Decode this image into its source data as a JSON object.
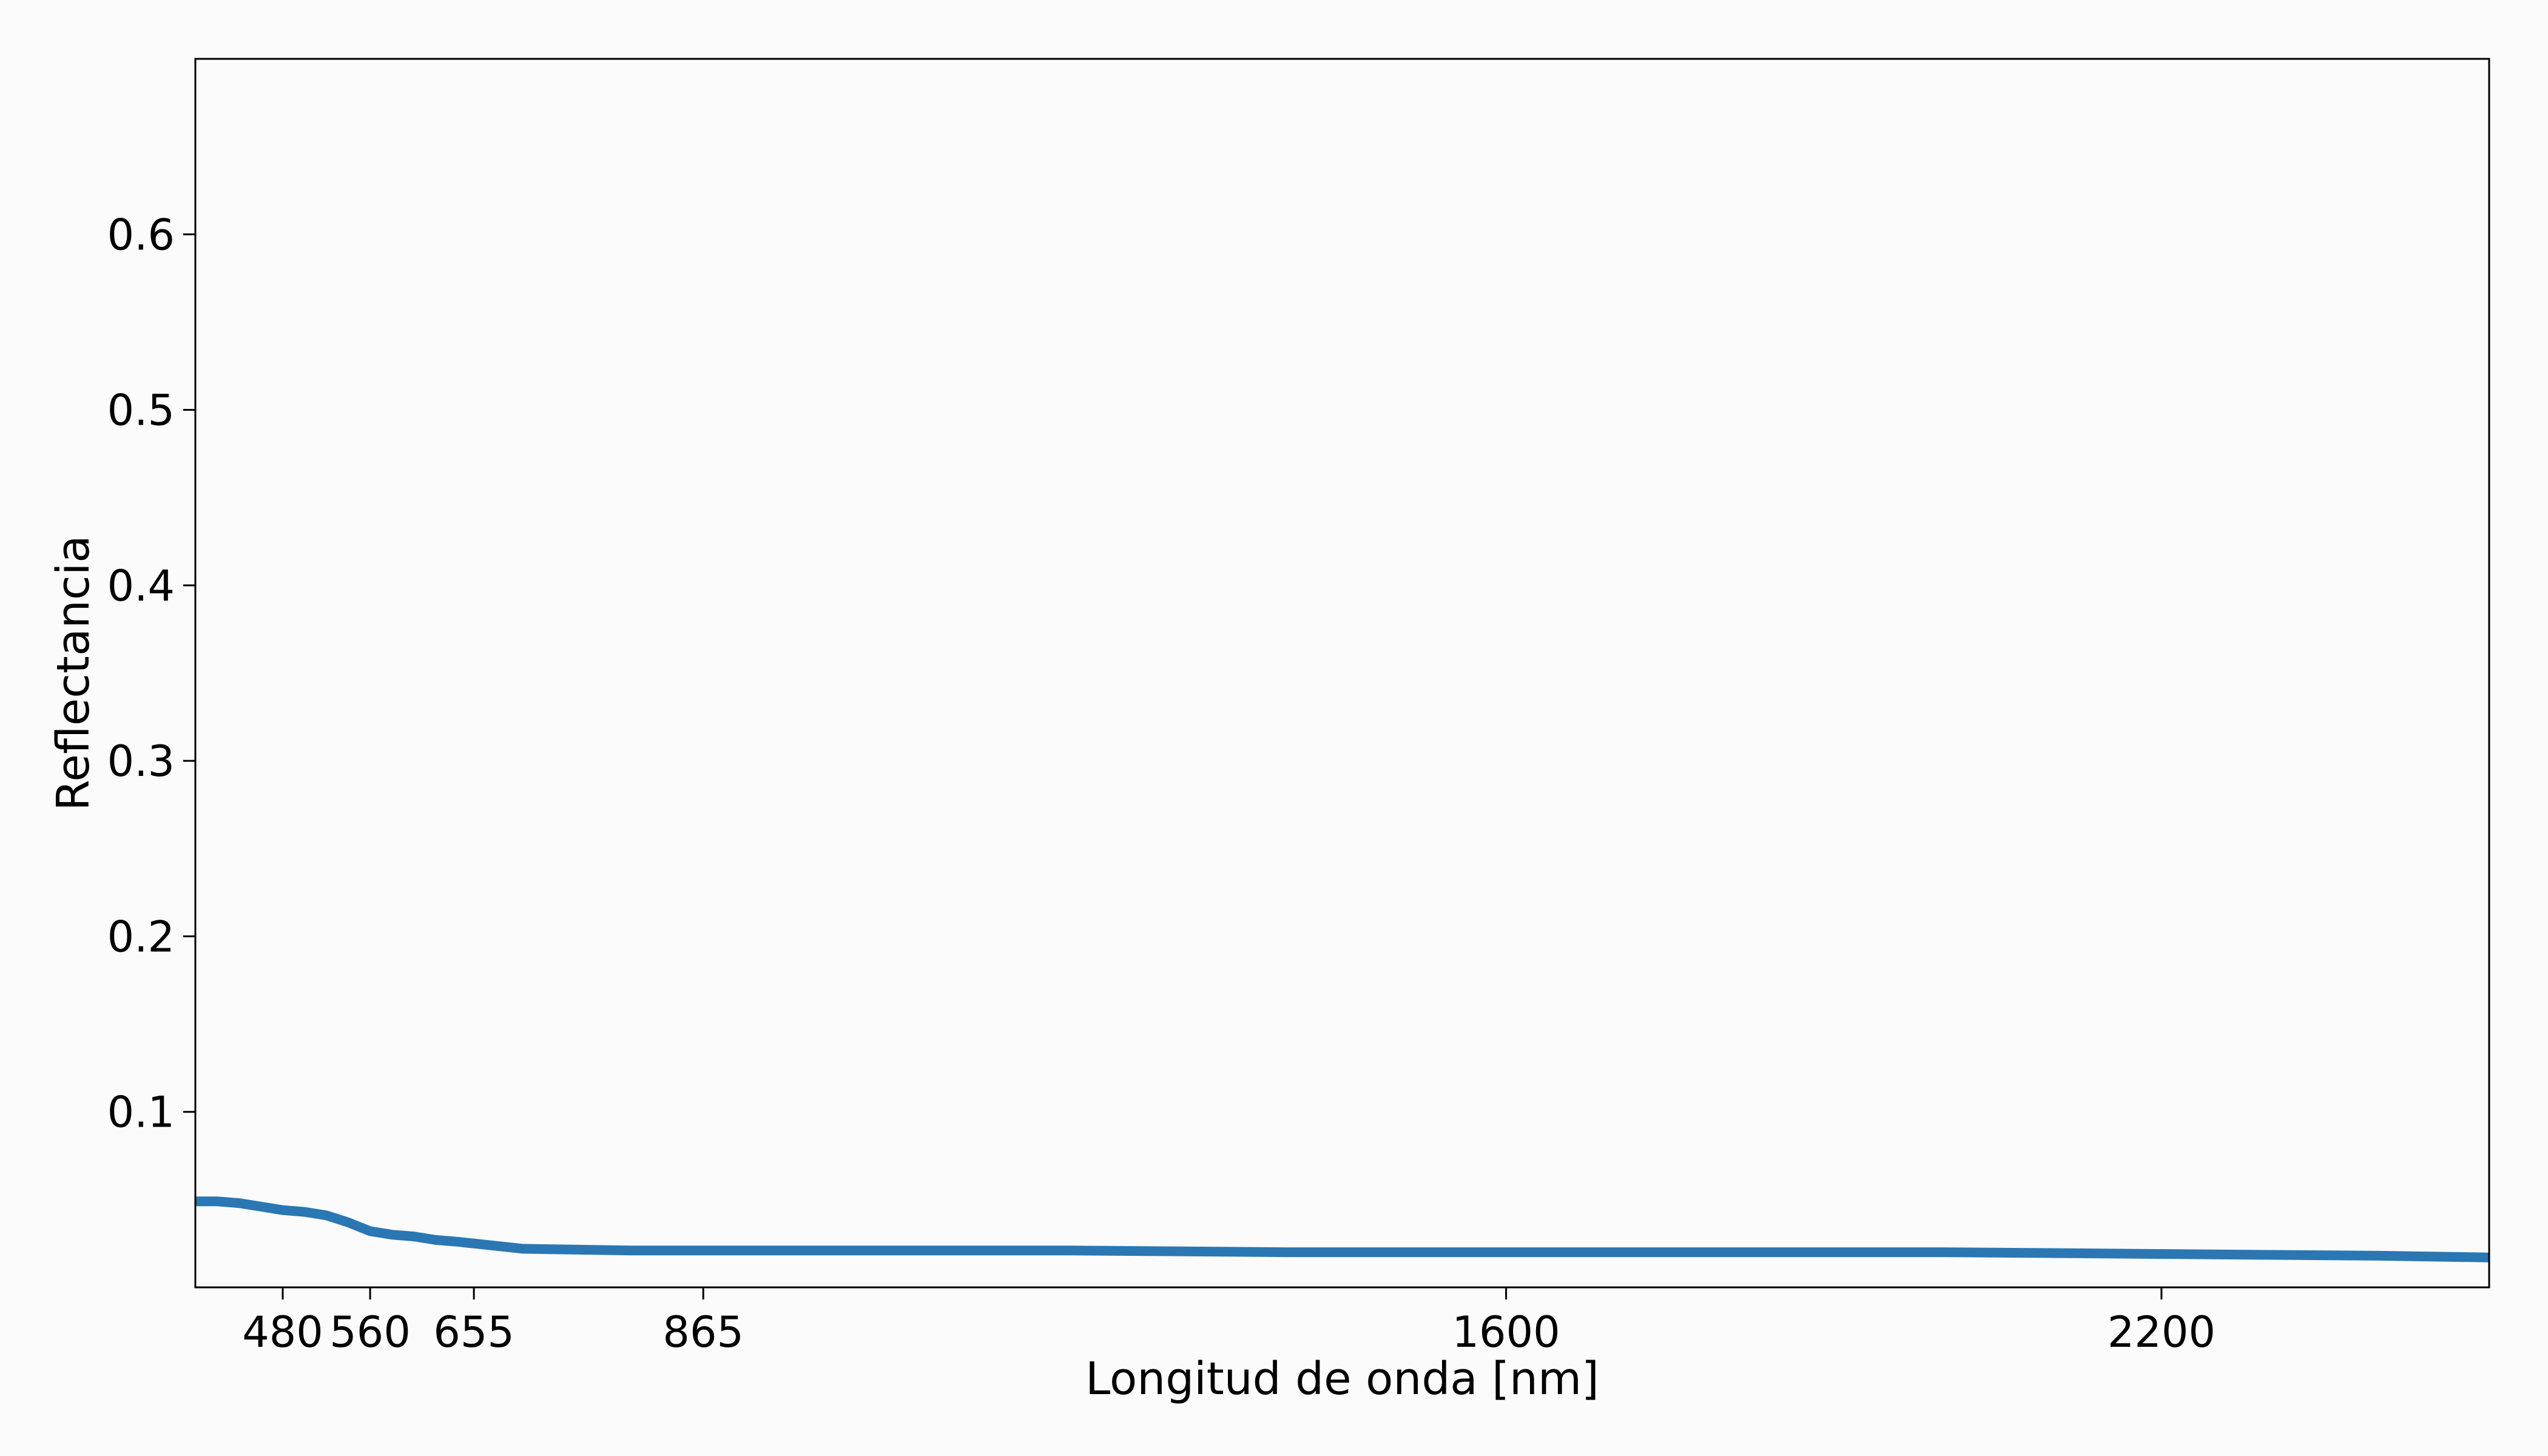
{
  "chart_data": {
    "type": "line",
    "title": "",
    "xlabel": "Longitud de onda [nm]",
    "ylabel": "Reflectancia",
    "xlim": [
      400,
      2500
    ],
    "ylim": [
      0.0,
      0.7
    ],
    "grid": false,
    "xticks": [
      480,
      560,
      655,
      865,
      1600,
      2200
    ],
    "yticks": [
      0.1,
      0.2,
      0.3,
      0.4,
      0.5,
      0.6
    ],
    "line_color": "#2a77b4",
    "series": [
      {
        "x": [
          400,
          420,
          440,
          460,
          480,
          500,
          510,
          520,
          540,
          560,
          580,
          600,
          620,
          640,
          655,
          700,
          800,
          865,
          1000,
          1200,
          1400,
          1600,
          1650,
          1700,
          1800,
          2000,
          2200,
          2400,
          2500
        ],
        "y": [
          0.049,
          0.049,
          0.048,
          0.046,
          0.044,
          0.043,
          0.042,
          0.041,
          0.037,
          0.032,
          0.03,
          0.029,
          0.027,
          0.026,
          0.025,
          0.022,
          0.021,
          0.021,
          0.021,
          0.021,
          0.02,
          0.02,
          0.02,
          0.02,
          0.02,
          0.02,
          0.019,
          0.018,
          0.017
        ]
      }
    ]
  }
}
